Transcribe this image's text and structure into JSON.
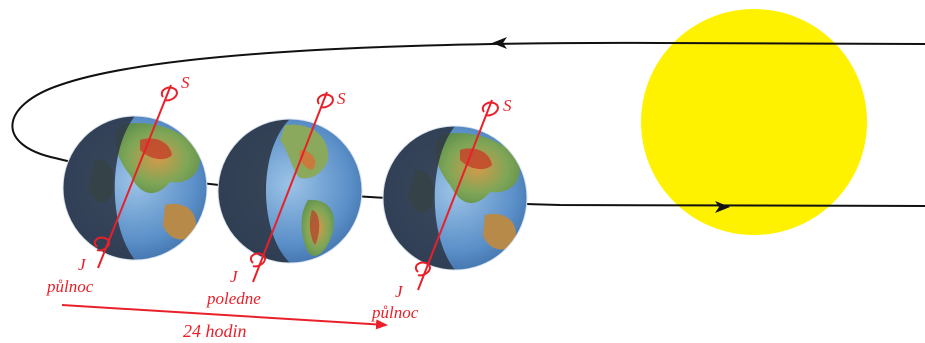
{
  "labels": {
    "north": "S",
    "south": "J",
    "midnight": "půlnoc",
    "noon": "poledne",
    "duration": "24 hodin"
  },
  "colors": {
    "sun": "#fff200",
    "axis_red": "#e8202a",
    "orbit": "#111111",
    "ocean": "#5a8fc8",
    "night_shade": "#2d3748"
  }
}
